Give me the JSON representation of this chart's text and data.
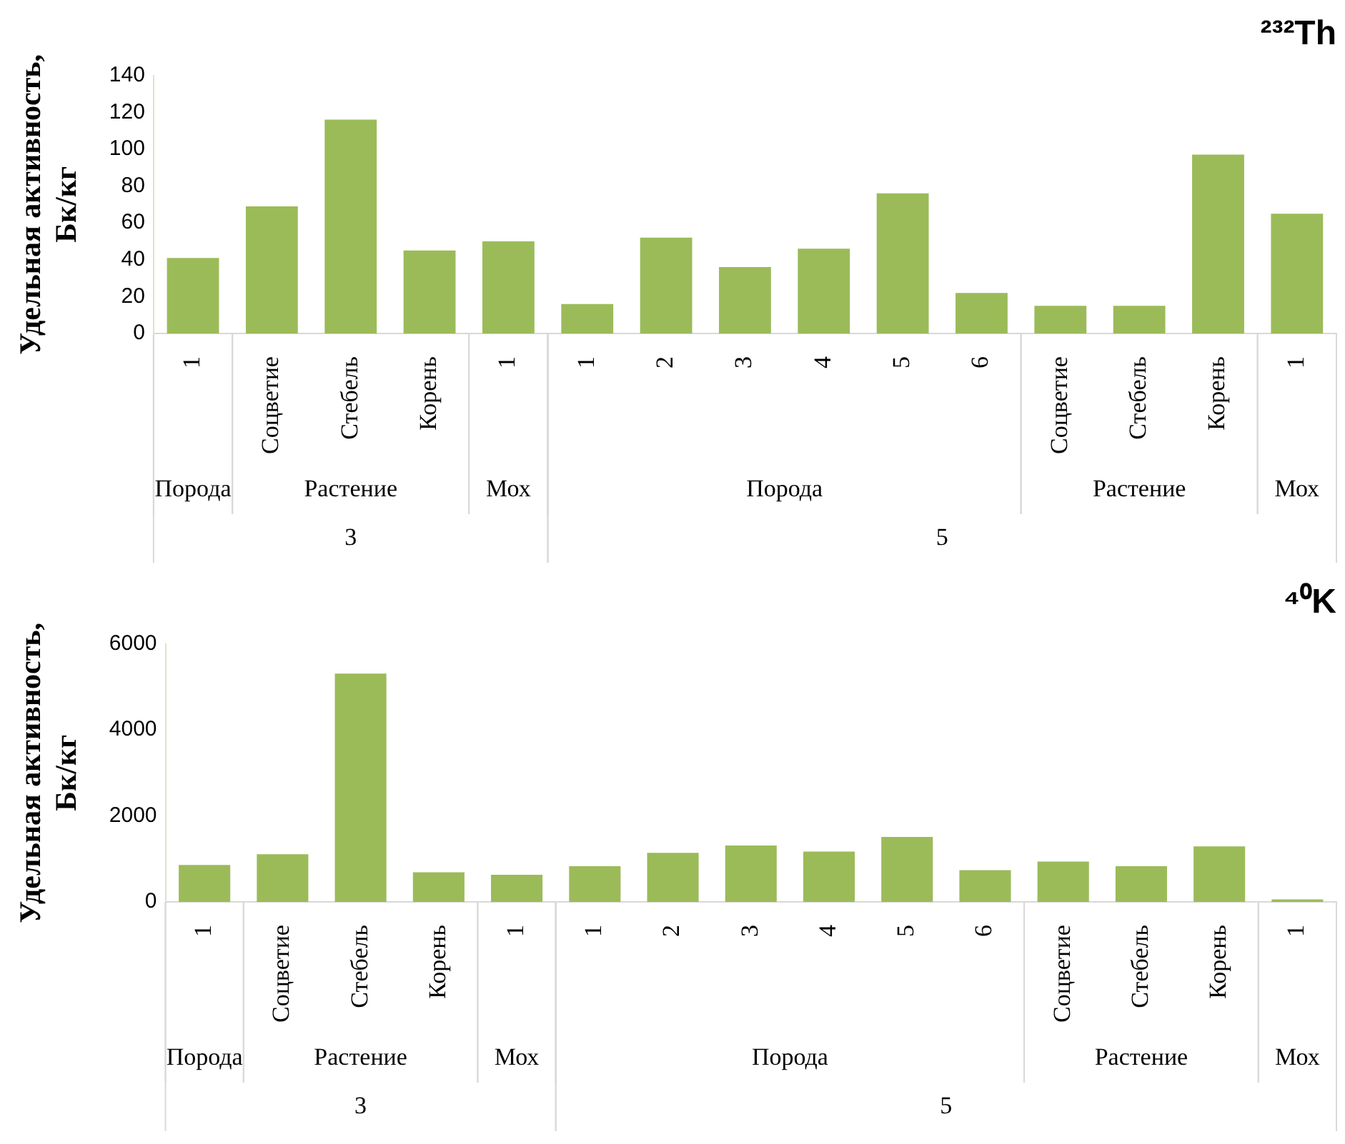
{
  "chart_data": [
    {
      "type": "bar",
      "title": "²³²Th",
      "ylabel": "Удельная активность, Бк/кг",
      "categories": [
        "1",
        "Соцветие",
        "Стебель",
        "Корень",
        "1",
        "1",
        "2",
        "3",
        "4",
        "5",
        "6",
        "Соцветие",
        "Стебель",
        "Корень",
        "1"
      ],
      "values": [
        41,
        69,
        116,
        45,
        50,
        16,
        52,
        36,
        46,
        76,
        22,
        15,
        15,
        97,
        65
      ],
      "color": "#9bbb59",
      "ylim": [
        0,
        140
      ],
      "yticks": [
        0,
        20,
        40,
        60,
        80,
        100,
        120,
        140
      ],
      "annotations": [
        "Порода",
        "Растение",
        "Мох",
        "Порода",
        "Растение",
        "Мох",
        "3",
        "5"
      ]
    },
    {
      "type": "bar",
      "title": "⁴⁰K",
      "ylabel": "Удельная активность, Бк/кг",
      "categories": [
        "1",
        "Соцветие",
        "Стебель",
        "Корень",
        "1",
        "1",
        "2",
        "3",
        "4",
        "5",
        "6",
        "Соцветие",
        "Стебель",
        "Корень",
        "1"
      ],
      "values": [
        860,
        1110,
        5310,
        690,
        630,
        830,
        1140,
        1310,
        1170,
        1510,
        740,
        940,
        830,
        1290,
        60
      ],
      "color": "#9bbb59",
      "ylim": [
        0,
        6000
      ],
      "yticks": [
        0,
        2000,
        4000,
        6000
      ],
      "annotations": [
        "Порода",
        "Растение",
        "Мох",
        "Порода",
        "Растение",
        "Мох",
        "3",
        "5"
      ]
    }
  ]
}
